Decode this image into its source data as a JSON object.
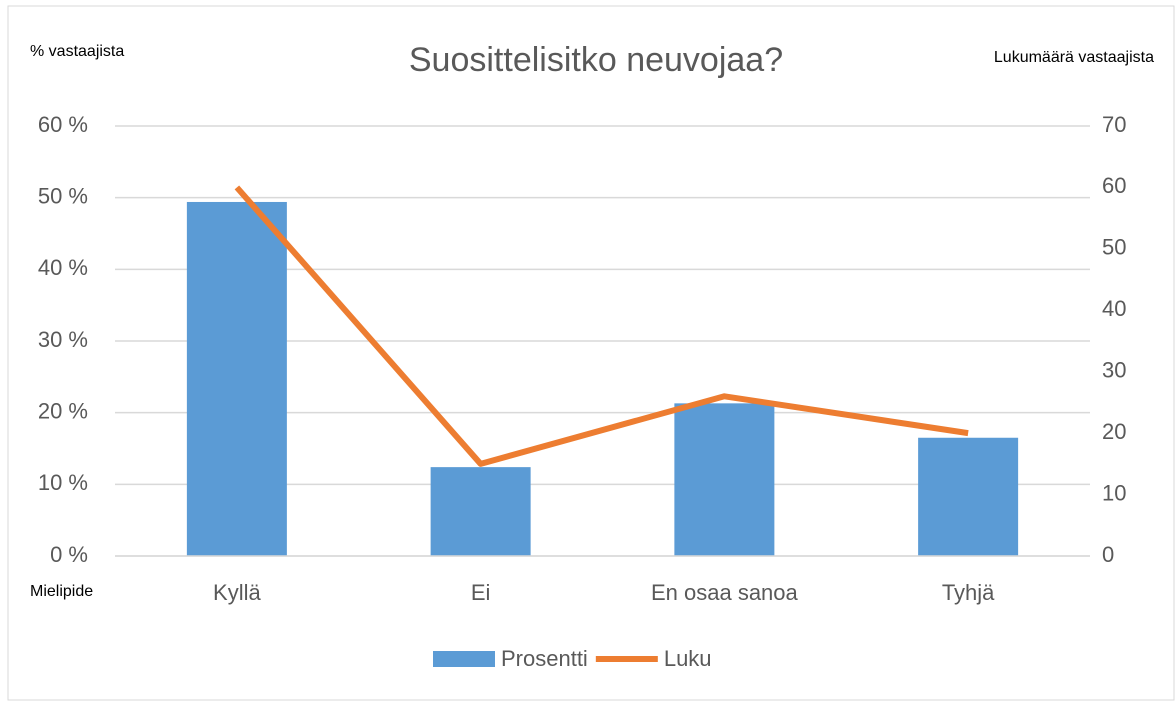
{
  "chart_data": {
    "type": "combo",
    "title": "Suosittelisitko neuvojaa?",
    "y_label": "% vastaajista",
    "y2_label": "Lukumäärä vastaajista",
    "x_label": "Mielipide",
    "categories": [
      "Kyllä",
      "Ei",
      "En osaa sanoa",
      "Tyhjä"
    ],
    "series": [
      {
        "name": "Prosentti",
        "type": "bar",
        "color": "#5b9bd5",
        "values": [
          49.4,
          12.4,
          21.3,
          16.5
        ]
      },
      {
        "name": "Luku",
        "type": "line",
        "color": "#ed7d31",
        "axis": "y2",
        "values": [
          60,
          15,
          26,
          20
        ]
      }
    ],
    "ylim": [
      0,
      60
    ],
    "yticks": [
      {
        "value": 0,
        "label": "0 %"
      },
      {
        "value": 10,
        "label": "10 %"
      },
      {
        "value": 20,
        "label": "20 %"
      },
      {
        "value": 30,
        "label": "30 %"
      },
      {
        "value": 40,
        "label": "40 %"
      },
      {
        "value": 50,
        "label": "50 %"
      },
      {
        "value": 60,
        "label": "60 %"
      }
    ],
    "y2lim": [
      0,
      70
    ],
    "y2ticks": [
      0,
      10,
      20,
      30,
      40,
      50,
      60,
      70
    ],
    "grid": true,
    "legend": "bottom"
  }
}
